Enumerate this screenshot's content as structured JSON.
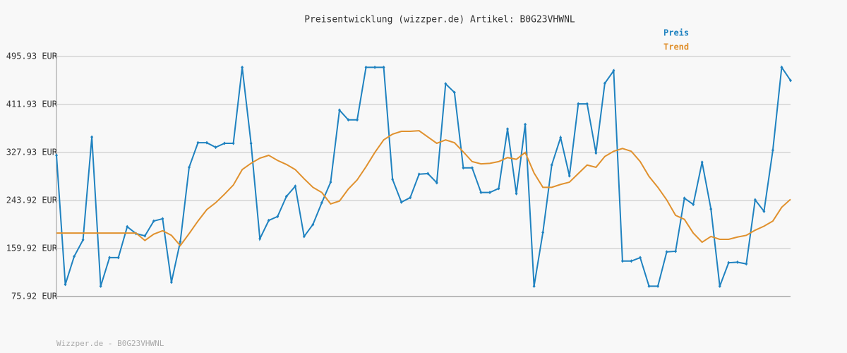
{
  "chart_data": {
    "type": "line",
    "title": "Preisentwicklung (wizzper.de) Artikel: B0G23VHWNL",
    "footer": "Wizzper.de - B0G23VHWNL",
    "categories": [
      null,
      null,
      null,
      null,
      null,
      null,
      null,
      null,
      null,
      null,
      null,
      null,
      null,
      null,
      null,
      null,
      null,
      null,
      null,
      null,
      null,
      null,
      null,
      null,
      null,
      null,
      null,
      null,
      null,
      null,
      null,
      null,
      null,
      null,
      null,
      null,
      null,
      null,
      null,
      null,
      null,
      null,
      null,
      null,
      null,
      null,
      null,
      null,
      null,
      null,
      null,
      null,
      null,
      null,
      null,
      null,
      null,
      null,
      null,
      null,
      null,
      null,
      null,
      null,
      null,
      null,
      null,
      null,
      null,
      null,
      null,
      null,
      null,
      null,
      null,
      null,
      null,
      null,
      null,
      null,
      null,
      null,
      null,
      null
    ],
    "series": [
      {
        "name": "Preis",
        "color": "#1f82c0",
        "markers": true,
        "values": [
          323,
          97,
          146,
          175,
          355,
          94,
          144,
          144,
          198,
          186,
          182,
          208,
          212,
          101,
          172,
          302,
          345,
          345,
          337,
          344,
          344,
          477,
          344,
          177,
          209,
          216,
          251,
          269,
          181,
          202,
          240,
          276,
          402,
          385,
          385,
          477,
          477,
          477,
          281,
          241,
          249,
          290,
          291,
          275,
          448,
          433,
          301,
          301,
          258,
          258,
          265,
          369,
          256,
          377,
          94,
          188,
          306,
          354,
          287,
          413,
          413,
          327,
          449,
          471,
          138,
          138,
          144,
          94,
          94,
          154,
          155,
          248,
          237,
          311,
          229,
          94,
          135,
          136,
          133,
          245,
          225,
          332,
          477,
          454
        ]
      },
      {
        "name": "Trend",
        "color": "#e0912e",
        "markers": false,
        "values": [
          187,
          187,
          187,
          187,
          187,
          187,
          187,
          187,
          187,
          187,
          174,
          185,
          191,
          183,
          165,
          186,
          208,
          228,
          240,
          255,
          271,
          298,
          309,
          318,
          323,
          314,
          307,
          298,
          282,
          267,
          258,
          238,
          243,
          264,
          280,
          303,
          328,
          350,
          360,
          365,
          365,
          366,
          355,
          344,
          350,
          345,
          329,
          312,
          308,
          309,
          312,
          319,
          316,
          328,
          292,
          267,
          267,
          272,
          276,
          291,
          306,
          302,
          321,
          330,
          335,
          330,
          312,
          286,
          267,
          245,
          218,
          211,
          187,
          171,
          181,
          176,
          176,
          180,
          183,
          192,
          199,
          208,
          232,
          246
        ]
      }
    ],
    "ylim": [
      75.92,
      495.93
    ],
    "yticks": [
      {
        "value": 75.92,
        "label": "75.92 EUR"
      },
      {
        "value": 159.92,
        "label": "159.92 EUR"
      },
      {
        "value": 243.92,
        "label": "243.92 EUR"
      },
      {
        "value": 327.93,
        "label": "327.93 EUR"
      },
      {
        "value": 411.93,
        "label": "411.93 EUR"
      },
      {
        "value": 495.93,
        "label": "495.93 EUR"
      }
    ],
    "grid": true,
    "legend": "top-right"
  }
}
